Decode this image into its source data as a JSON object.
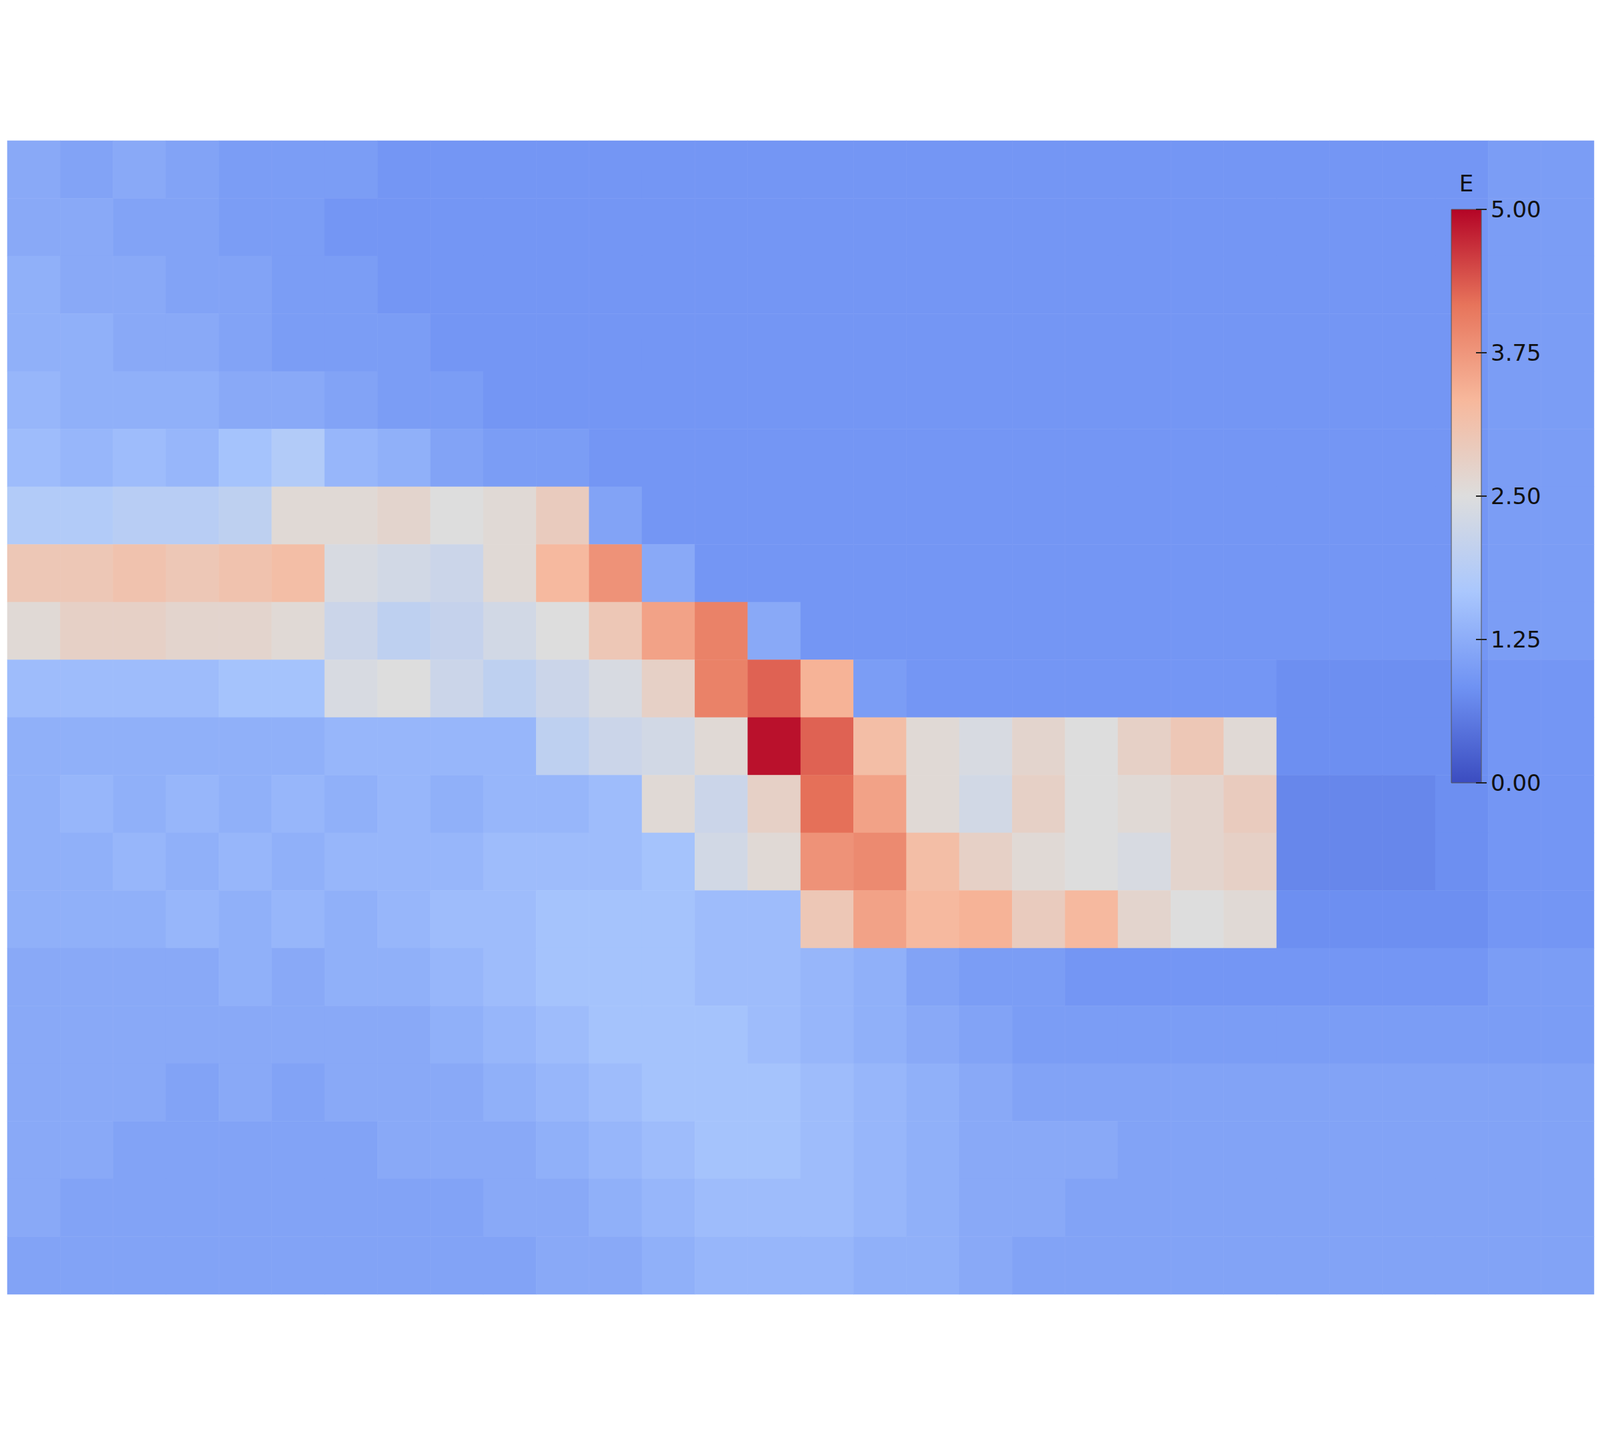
{
  "chart_data": {
    "type": "heatmap",
    "tick_labels": false,
    "colorbar_title": "E",
    "color_range": [
      0,
      5
    ],
    "color_ticks": [
      {
        "value": 0,
        "label": "0.00"
      },
      {
        "value": 1.25,
        "label": "1.25"
      },
      {
        "value": 2.5,
        "label": "2.50"
      },
      {
        "value": 3.75,
        "label": "3.75"
      },
      {
        "value": 5,
        "label": "5.00"
      }
    ],
    "cells": [
      [
        1.2,
        1.1,
        1.2,
        1.1,
        1.0,
        1.0,
        1.0,
        0.9,
        0.9,
        0.9,
        0.9,
        0.9,
        0.9,
        0.9,
        0.9,
        0.9,
        0.9,
        0.9,
        0.9,
        0.9,
        0.9,
        0.9,
        0.9,
        0.9,
        0.9,
        0.9,
        0.9,
        0.9,
        1.0,
        1.0
      ],
      [
        1.2,
        1.2,
        1.1,
        1.1,
        1.0,
        1.0,
        0.9,
        0.9,
        0.9,
        0.9,
        0.9,
        0.9,
        0.9,
        0.9,
        0.9,
        0.9,
        0.9,
        0.9,
        0.9,
        0.9,
        0.9,
        0.9,
        0.9,
        0.9,
        0.9,
        0.9,
        0.9,
        0.9,
        1.0,
        1.0
      ],
      [
        1.3,
        1.2,
        1.2,
        1.1,
        1.1,
        1.0,
        1.0,
        0.9,
        0.9,
        0.9,
        0.9,
        0.9,
        0.9,
        0.9,
        0.9,
        0.9,
        0.9,
        0.9,
        0.9,
        0.9,
        0.9,
        0.9,
        0.9,
        0.9,
        0.9,
        0.9,
        0.9,
        0.9,
        1.0,
        1.0
      ],
      [
        1.3,
        1.3,
        1.2,
        1.2,
        1.1,
        1.0,
        1.0,
        1.0,
        0.9,
        0.9,
        0.9,
        0.9,
        0.9,
        0.9,
        0.9,
        0.9,
        0.9,
        0.9,
        0.9,
        0.9,
        0.9,
        0.9,
        0.9,
        0.9,
        0.9,
        0.9,
        0.9,
        0.9,
        1.0,
        1.0
      ],
      [
        1.4,
        1.3,
        1.3,
        1.3,
        1.2,
        1.2,
        1.1,
        1.0,
        1.0,
        0.9,
        0.9,
        0.9,
        0.9,
        0.9,
        0.9,
        0.9,
        0.9,
        0.9,
        0.9,
        0.9,
        0.9,
        0.9,
        0.9,
        0.9,
        0.9,
        0.9,
        0.9,
        0.9,
        1.0,
        1.0
      ],
      [
        1.5,
        1.4,
        1.5,
        1.4,
        1.6,
        1.8,
        1.4,
        1.3,
        1.1,
        1.0,
        1.0,
        0.9,
        0.9,
        0.9,
        0.9,
        0.9,
        0.9,
        0.9,
        0.9,
        0.9,
        0.9,
        0.9,
        0.9,
        0.9,
        0.9,
        0.9,
        0.9,
        0.9,
        1.0,
        1.0
      ],
      [
        1.8,
        1.8,
        1.9,
        1.9,
        2.0,
        2.6,
        2.6,
        2.7,
        2.5,
        2.6,
        2.9,
        1.1,
        0.9,
        0.9,
        0.9,
        0.9,
        0.9,
        0.9,
        0.9,
        0.9,
        0.9,
        0.9,
        0.9,
        0.9,
        0.9,
        0.9,
        0.9,
        0.9,
        1.0,
        1.0
      ],
      [
        3.0,
        3.0,
        3.1,
        3.0,
        3.1,
        3.2,
        2.4,
        2.3,
        2.2,
        2.6,
        3.3,
        3.8,
        1.2,
        0.9,
        0.9,
        0.9,
        0.9,
        0.9,
        0.9,
        0.9,
        0.9,
        0.9,
        0.9,
        0.9,
        0.9,
        0.9,
        0.9,
        0.9,
        1.0,
        1.0
      ],
      [
        2.6,
        2.8,
        2.8,
        2.7,
        2.7,
        2.6,
        2.2,
        2.0,
        2.1,
        2.3,
        2.5,
        3.0,
        3.6,
        4.0,
        1.2,
        0.9,
        0.9,
        0.9,
        0.9,
        0.9,
        0.9,
        0.9,
        0.9,
        0.9,
        0.9,
        0.9,
        0.9,
        0.9,
        1.0,
        1.0
      ],
      [
        1.5,
        1.5,
        1.5,
        1.5,
        1.6,
        1.6,
        2.4,
        2.5,
        2.2,
        2.0,
        2.2,
        2.4,
        2.8,
        4.0,
        4.3,
        3.4,
        1.0,
        0.9,
        0.9,
        0.9,
        0.9,
        0.9,
        0.9,
        0.9,
        0.8,
        0.8,
        0.8,
        0.8,
        0.9,
        0.9
      ],
      [
        1.3,
        1.3,
        1.3,
        1.3,
        1.3,
        1.3,
        1.4,
        1.4,
        1.4,
        1.4,
        2.0,
        2.2,
        2.3,
        2.6,
        4.9,
        4.3,
        3.2,
        2.6,
        2.4,
        2.7,
        2.5,
        2.8,
        3.0,
        2.6,
        0.8,
        0.8,
        0.8,
        0.8,
        0.9,
        0.9
      ],
      [
        1.3,
        1.4,
        1.3,
        1.4,
        1.3,
        1.4,
        1.3,
        1.4,
        1.3,
        1.4,
        1.4,
        1.5,
        2.6,
        2.2,
        2.8,
        4.2,
        3.6,
        2.6,
        2.3,
        2.8,
        2.5,
        2.6,
        2.7,
        2.9,
        0.7,
        0.7,
        0.7,
        0.8,
        0.9,
        0.9
      ],
      [
        1.3,
        1.3,
        1.4,
        1.3,
        1.4,
        1.3,
        1.4,
        1.4,
        1.4,
        1.5,
        1.5,
        1.5,
        1.6,
        2.3,
        2.6,
        3.8,
        3.9,
        3.2,
        2.8,
        2.6,
        2.5,
        2.4,
        2.7,
        2.8,
        0.7,
        0.7,
        0.7,
        0.8,
        0.9,
        0.9
      ],
      [
        1.3,
        1.3,
        1.3,
        1.4,
        1.3,
        1.4,
        1.3,
        1.4,
        1.5,
        1.5,
        1.6,
        1.6,
        1.6,
        1.5,
        1.5,
        3.0,
        3.6,
        3.3,
        3.4,
        2.9,
        3.3,
        2.7,
        2.5,
        2.6,
        0.8,
        0.8,
        0.8,
        0.8,
        0.9,
        0.9
      ],
      [
        1.2,
        1.2,
        1.2,
        1.2,
        1.3,
        1.2,
        1.3,
        1.3,
        1.4,
        1.5,
        1.6,
        1.6,
        1.6,
        1.5,
        1.5,
        1.4,
        1.3,
        1.1,
        1.0,
        1.0,
        0.9,
        0.9,
        0.9,
        0.9,
        0.9,
        0.9,
        0.9,
        0.9,
        1.0,
        1.0
      ],
      [
        1.2,
        1.2,
        1.2,
        1.2,
        1.2,
        1.2,
        1.2,
        1.2,
        1.3,
        1.4,
        1.5,
        1.6,
        1.6,
        1.6,
        1.5,
        1.4,
        1.3,
        1.2,
        1.1,
        1.0,
        1.0,
        1.0,
        1.0,
        1.0,
        1.0,
        1.0,
        1.0,
        1.0,
        1.0,
        1.0
      ],
      [
        1.2,
        1.2,
        1.2,
        1.1,
        1.2,
        1.1,
        1.2,
        1.2,
        1.2,
        1.3,
        1.4,
        1.5,
        1.6,
        1.6,
        1.6,
        1.5,
        1.4,
        1.3,
        1.2,
        1.1,
        1.1,
        1.1,
        1.1,
        1.1,
        1.1,
        1.1,
        1.1,
        1.1,
        1.1,
        1.1
      ],
      [
        1.2,
        1.2,
        1.1,
        1.1,
        1.1,
        1.1,
        1.1,
        1.2,
        1.2,
        1.2,
        1.3,
        1.4,
        1.5,
        1.6,
        1.6,
        1.5,
        1.4,
        1.3,
        1.2,
        1.2,
        1.2,
        1.1,
        1.1,
        1.1,
        1.1,
        1.1,
        1.1,
        1.1,
        1.1,
        1.1
      ],
      [
        1.2,
        1.1,
        1.1,
        1.1,
        1.1,
        1.1,
        1.1,
        1.1,
        1.1,
        1.2,
        1.2,
        1.3,
        1.4,
        1.5,
        1.5,
        1.5,
        1.4,
        1.3,
        1.2,
        1.2,
        1.1,
        1.1,
        1.1,
        1.1,
        1.1,
        1.1,
        1.1,
        1.1,
        1.1,
        1.1
      ],
      [
        1.1,
        1.1,
        1.1,
        1.1,
        1.1,
        1.1,
        1.1,
        1.1,
        1.1,
        1.1,
        1.2,
        1.2,
        1.3,
        1.4,
        1.4,
        1.4,
        1.3,
        1.3,
        1.2,
        1.1,
        1.1,
        1.1,
        1.1,
        1.1,
        1.1,
        1.1,
        1.1,
        1.1,
        1.1,
        1.1
      ]
    ]
  }
}
